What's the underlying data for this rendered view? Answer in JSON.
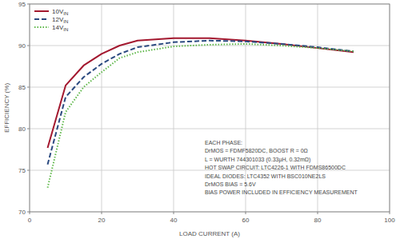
{
  "chart_data": {
    "type": "line",
    "x_label": "LOAD CURRENT (A)",
    "y_label": "EFFICIENCY (%)",
    "x": [
      5,
      10,
      15,
      20,
      25,
      30,
      40,
      50,
      60,
      70,
      80,
      90
    ],
    "series": [
      {
        "name": "10VIN",
        "color": "#a3182f",
        "line_style": "solid",
        "values": [
          77.7,
          85.2,
          87.6,
          89.0,
          90.0,
          90.6,
          90.9,
          90.9,
          90.6,
          90.2,
          89.7,
          89.2
        ]
      },
      {
        "name": "12VIN",
        "color": "#2b4a80",
        "line_style": "dashed",
        "values": [
          75.7,
          83.8,
          86.2,
          87.8,
          89.0,
          89.8,
          90.4,
          90.6,
          90.5,
          90.2,
          89.8,
          89.3
        ]
      },
      {
        "name": "14VIN",
        "color": "#5fb84a",
        "line_style": "dotted",
        "values": [
          72.9,
          82.0,
          85.0,
          86.8,
          88.5,
          89.2,
          89.9,
          90.1,
          90.2,
          90.0,
          89.7,
          89.3
        ]
      }
    ],
    "xlim": [
      0,
      100
    ],
    "xticks": [
      0,
      20,
      40,
      60,
      80,
      100
    ],
    "ylim": [
      70,
      95
    ],
    "yticks": [
      70,
      75,
      80,
      85,
      90,
      95
    ],
    "grid": true,
    "legend": "upper left",
    "annotations": [
      "EACH PHASE:",
      "DrMOS = FDMF5820DC, BOOST R = 0Ω",
      "L = WURTH 744301033 (0.33µH, 0.32mΩ)",
      "HOT SWAP CIRCUIT: LTC4226-1 WITH FDMS86500DC",
      "IDEAL DIODES: LTC4352 WITH BSC010NE2LS",
      "DrMOS BIAS = 5.6V",
      "BIAS POWER INCLUDED IN EFFICIENCY MEASUREMENT"
    ]
  }
}
